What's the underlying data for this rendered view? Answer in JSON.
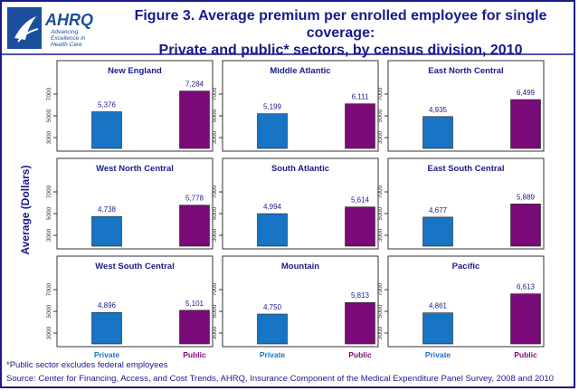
{
  "logo": {
    "text": "AHRQ",
    "tagline_1": "Advancing",
    "tagline_2": "Excellence in",
    "tagline_3": "Health Care"
  },
  "title_line1": "Figure 3. Average premium per enrolled employee for single coverage:",
  "title_line2": "Private and public* sectors, by census division, 2010",
  "footnote": "*Public sector excludes federal employees",
  "source": "Source: Center for Financing, Access, and Cost Trends, AHRQ, Insurance Component of the Medical Expenditure Panel Survey, 2008 and 2010",
  "colors": {
    "private": "#1874c4",
    "public": "#7a0a78",
    "text": "#1a1a8c",
    "frame": "#1a1a8c"
  },
  "chart_data": {
    "type": "bar",
    "ylabel": "Average (Dollars)",
    "categories": [
      "Private",
      "Public"
    ],
    "yticks": [
      3000,
      5000,
      7000
    ],
    "ylim": [
      2000,
      8000
    ],
    "grid": false,
    "panels": [
      {
        "title": "New England",
        "values": [
          5376,
          7284
        ],
        "labels": [
          "5,376",
          "7,284"
        ]
      },
      {
        "title": "Middle Atlantic",
        "values": [
          5199,
          6111
        ],
        "labels": [
          "5,199",
          "6,111"
        ]
      },
      {
        "title": "East North Central",
        "values": [
          4935,
          6499
        ],
        "labels": [
          "4,935",
          "6,499"
        ]
      },
      {
        "title": "West North Central",
        "values": [
          4738,
          5778
        ],
        "labels": [
          "4,738",
          "5,778"
        ]
      },
      {
        "title": "South Atlantic",
        "values": [
          4994,
          5614
        ],
        "labels": [
          "4,994",
          "5,614"
        ]
      },
      {
        "title": "East South Central",
        "values": [
          4677,
          5889
        ],
        "labels": [
          "4,677",
          "5,889"
        ]
      },
      {
        "title": "West South Central",
        "values": [
          4896,
          5101
        ],
        "labels": [
          "4,896",
          "5,101"
        ]
      },
      {
        "title": "Mountain",
        "values": [
          4750,
          5813
        ],
        "labels": [
          "4,750",
          "5,813"
        ]
      },
      {
        "title": "Pacific",
        "values": [
          4861,
          6613
        ],
        "labels": [
          "4,861",
          "6,613"
        ]
      }
    ]
  }
}
